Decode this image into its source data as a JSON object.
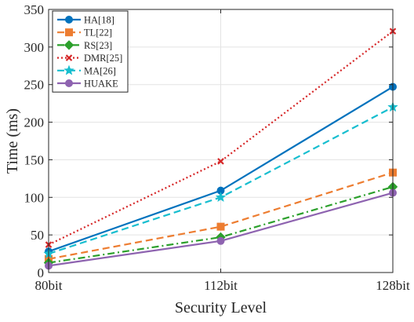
{
  "chart_data": {
    "type": "line",
    "title": "",
    "xlabel": "Security Level",
    "ylabel": "Time (ms)",
    "categories": [
      "80bit",
      "112bit",
      "128bit"
    ],
    "ylim": [
      0,
      350
    ],
    "yticks": [
      "0",
      "50",
      "100",
      "150",
      "200",
      "250",
      "300",
      "350"
    ],
    "grid": true,
    "legend_position": "top-left",
    "series": [
      {
        "name": "HA[18]",
        "values": [
          28,
          109,
          247
        ],
        "color": "#0072BD",
        "dash": "solid",
        "marker": "circle"
      },
      {
        "name": "TL[22]",
        "values": [
          18,
          61,
          133
        ],
        "color": "#ED7D31",
        "dash": "dashed",
        "marker": "square"
      },
      {
        "name": "RS[23]",
        "values": [
          13,
          47,
          114
        ],
        "color": "#2CA02C",
        "dash": "dashdot",
        "marker": "diamond"
      },
      {
        "name": "DMR[25]",
        "values": [
          37,
          148,
          321
        ],
        "color": "#D62728",
        "dash": "dotted",
        "marker": "x"
      },
      {
        "name": "MA[26]",
        "values": [
          25,
          100,
          220
        ],
        "color": "#17BECF",
        "dash": "dashed",
        "marker": "star"
      },
      {
        "name": "HUAKE",
        "values": [
          9,
          42,
          106
        ],
        "color": "#8E63B0",
        "dash": "solid",
        "marker": "circle"
      }
    ]
  }
}
